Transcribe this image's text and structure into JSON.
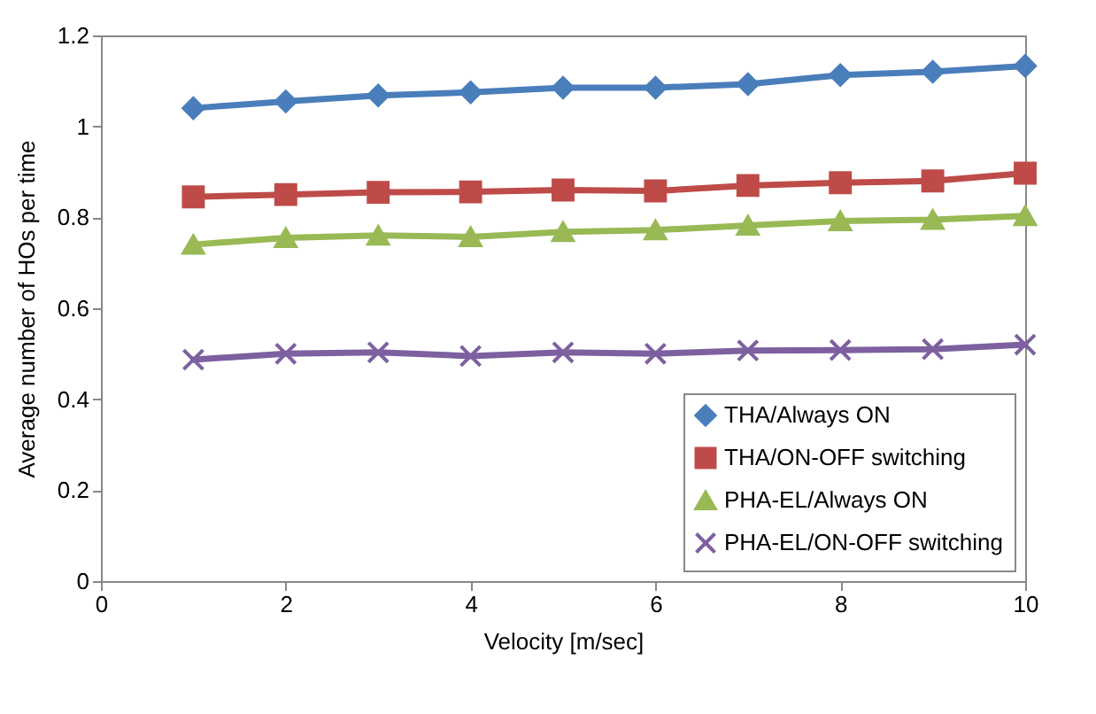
{
  "chart_data": {
    "type": "line",
    "xlabel": "Velocity [m/sec]",
    "ylabel": "Average number of HOs per time",
    "x": [
      1,
      2,
      3,
      4,
      5,
      6,
      7,
      8,
      9,
      10
    ],
    "series": [
      {
        "name": "THA/Always ON",
        "color": "#4a7ebb",
        "marker": "diamond",
        "values": [
          1.04,
          1.055,
          1.068,
          1.075,
          1.085,
          1.085,
          1.093,
          1.113,
          1.12,
          1.133
        ]
      },
      {
        "name": "THA/ON-OFF switching",
        "color": "#be4b48",
        "marker": "square",
        "values": [
          0.845,
          0.85,
          0.855,
          0.856,
          0.86,
          0.858,
          0.87,
          0.876,
          0.88,
          0.897
        ]
      },
      {
        "name": "PHA-EL/Always ON",
        "color": "#98b954",
        "marker": "triangle",
        "values": [
          0.74,
          0.755,
          0.76,
          0.757,
          0.768,
          0.772,
          0.782,
          0.792,
          0.795,
          0.803
        ]
      },
      {
        "name": "PHA-EL/ON-OFF switching",
        "color": "#7d60a0",
        "marker": "cross",
        "values": [
          0.487,
          0.5,
          0.503,
          0.495,
          0.503,
          0.5,
          0.507,
          0.508,
          0.51,
          0.52
        ]
      }
    ],
    "xlim": [
      0,
      10
    ],
    "xticks": [
      0,
      2,
      4,
      6,
      8,
      10
    ],
    "ylim": [
      0,
      1.2
    ],
    "yticks": [
      0,
      0.2,
      0.4,
      0.6,
      0.8,
      1,
      1.2
    ],
    "grid": false,
    "legend": "bottom right",
    "line_style": "solid"
  }
}
